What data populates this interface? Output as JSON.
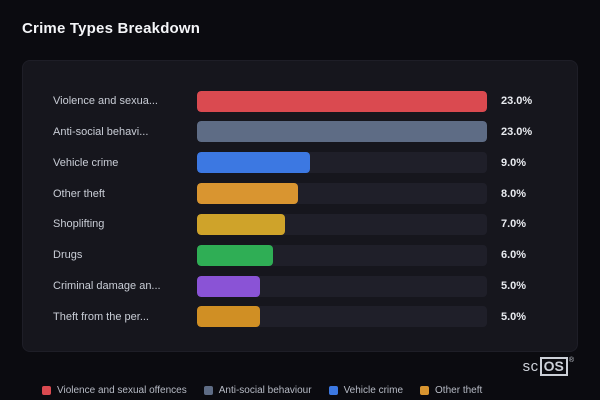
{
  "page_title": "Crime Types Breakdown",
  "logo": {
    "prefix": "sc",
    "box": "OS",
    "reg": "®"
  },
  "chart_data": {
    "type": "bar",
    "orientation": "horizontal",
    "title": "Crime Types Breakdown",
    "categories": [
      "Violence and sexua...",
      "Anti-social behavi...",
      "Vehicle crime",
      "Other theft",
      "Shoplifting",
      "Drugs",
      "Criminal damage an...",
      "Theft from the per..."
    ],
    "values": [
      23.0,
      23.0,
      9.0,
      8.0,
      7.0,
      6.0,
      5.0,
      5.0
    ],
    "value_labels": [
      "23.0%",
      "23.0%",
      "9.0%",
      "8.0%",
      "7.0%",
      "6.0%",
      "5.0%",
      "5.0%"
    ],
    "colors": [
      "#da4a50",
      "#5e6c85",
      "#3c78e2",
      "#d99530",
      "#cfa32a",
      "#2fae55",
      "#8a53d6",
      "#d08f24"
    ],
    "max_value": 23.0,
    "xlabel": "",
    "ylabel": "",
    "grid": false,
    "legend_position": "bottom",
    "legend": [
      {
        "label": "Violence and sexual offences",
        "color": "#da4a50"
      },
      {
        "label": "Anti-social behaviour",
        "color": "#5e6c85"
      },
      {
        "label": "Vehicle crime",
        "color": "#3c78e2"
      },
      {
        "label": "Other theft",
        "color": "#d99530"
      }
    ]
  }
}
